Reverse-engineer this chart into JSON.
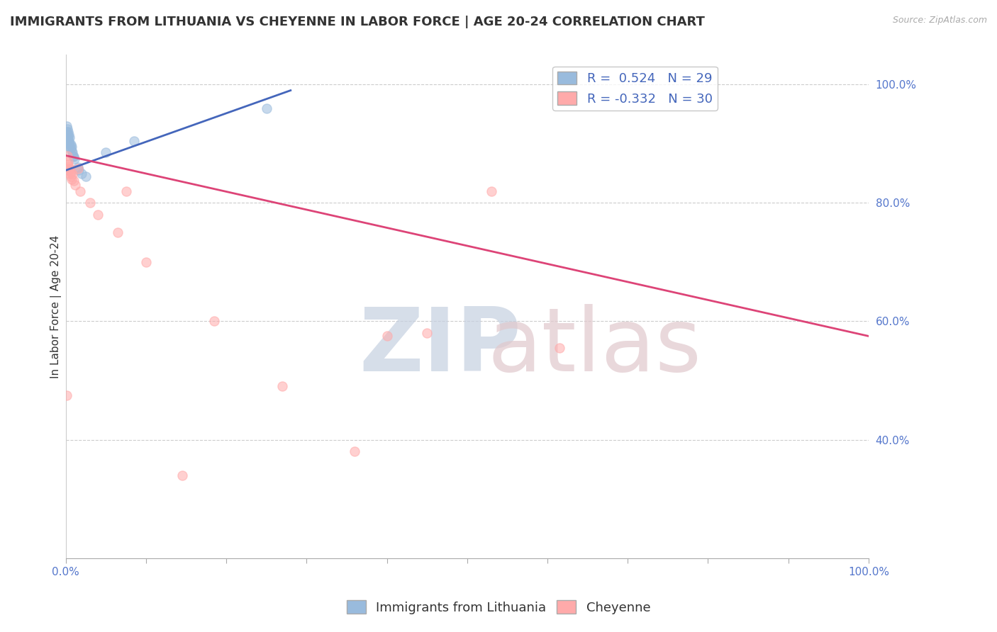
{
  "title": "IMMIGRANTS FROM LITHUANIA VS CHEYENNE IN LABOR FORCE | AGE 20-24 CORRELATION CHART",
  "source": "Source: ZipAtlas.com",
  "ylabel": "In Labor Force | Age 20-24",
  "watermark_zip": "ZIP",
  "watermark_atlas": "atlas",
  "blue_R": 0.524,
  "blue_N": 29,
  "pink_R": -0.332,
  "pink_N": 30,
  "blue_label": "Immigrants from Lithuania",
  "pink_label": "Cheyenne",
  "xlim": [
    0.0,
    1.0
  ],
  "ylim": [
    0.2,
    1.05
  ],
  "ytick_vals": [
    0.4,
    0.6,
    0.8,
    1.0
  ],
  "blue_scatter_x": [
    0.001,
    0.001,
    0.002,
    0.002,
    0.002,
    0.003,
    0.003,
    0.003,
    0.004,
    0.004,
    0.004,
    0.005,
    0.005,
    0.005,
    0.006,
    0.006,
    0.007,
    0.007,
    0.008,
    0.009,
    0.01,
    0.011,
    0.015,
    0.016,
    0.02,
    0.025,
    0.05,
    0.085,
    0.25
  ],
  "blue_scatter_y": [
    0.92,
    0.93,
    0.91,
    0.915,
    0.925,
    0.905,
    0.91,
    0.92,
    0.9,
    0.905,
    0.915,
    0.895,
    0.9,
    0.91,
    0.892,
    0.898,
    0.888,
    0.895,
    0.885,
    0.88,
    0.878,
    0.875,
    0.86,
    0.855,
    0.85,
    0.845,
    0.885,
    0.905,
    0.96
  ],
  "pink_scatter_x": [
    0.001,
    0.002,
    0.002,
    0.003,
    0.003,
    0.004,
    0.004,
    0.005,
    0.005,
    0.006,
    0.006,
    0.007,
    0.008,
    0.01,
    0.012,
    0.015,
    0.018,
    0.03,
    0.04,
    0.065,
    0.075,
    0.1,
    0.145,
    0.185,
    0.27,
    0.36,
    0.4,
    0.45,
    0.53,
    0.615
  ],
  "pink_scatter_y": [
    0.475,
    0.88,
    0.865,
    0.858,
    0.87,
    0.855,
    0.862,
    0.85,
    0.858,
    0.845,
    0.852,
    0.84,
    0.848,
    0.838,
    0.83,
    0.858,
    0.82,
    0.8,
    0.78,
    0.75,
    0.82,
    0.7,
    0.34,
    0.6,
    0.49,
    0.38,
    0.575,
    0.58,
    0.82,
    0.555
  ],
  "blue_line_x": [
    0.0,
    0.28
  ],
  "blue_line_y": [
    0.855,
    0.99
  ],
  "pink_line_x": [
    0.0,
    1.0
  ],
  "pink_line_y": [
    0.88,
    0.575
  ],
  "background_color": "#ffffff",
  "grid_color": "#cccccc",
  "blue_color": "#99bbdd",
  "pink_color": "#ffaaaa",
  "blue_line_color": "#4466bb",
  "pink_line_color": "#dd4477",
  "marker_size": 90,
  "marker_alpha": 0.55,
  "title_fontsize": 13,
  "axis_label_fontsize": 11,
  "tick_fontsize": 11,
  "legend_fontsize": 13
}
